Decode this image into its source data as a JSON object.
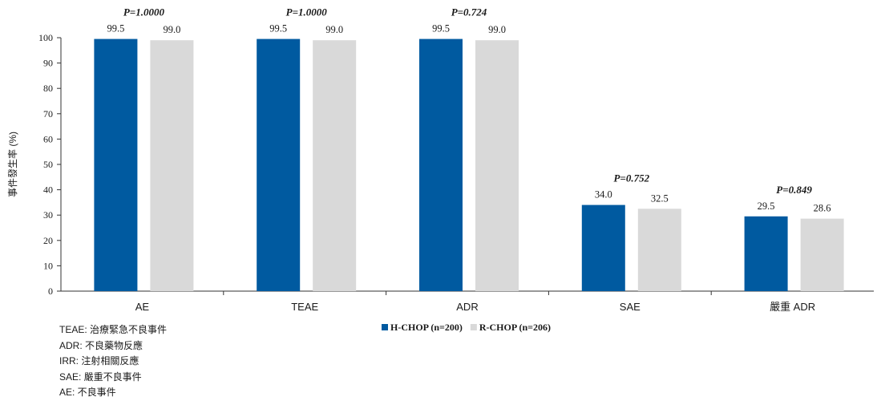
{
  "chart_data": {
    "type": "bar",
    "categories": [
      "AE",
      "TEAE",
      "ADR",
      "SAE",
      "嚴重 ADR"
    ],
    "series": [
      {
        "name": "H-CHOP (n=200)",
        "color": "#005aa0",
        "values": [
          99.5,
          99.5,
          99.5,
          34.0,
          29.5
        ],
        "labels": [
          "99.5",
          "99.5",
          "99.5",
          "34.0",
          "29.5"
        ]
      },
      {
        "name": "R-CHOP (n=206)",
        "color": "#d9d9d9",
        "values": [
          99.0,
          99.0,
          99.0,
          32.5,
          28.6
        ],
        "labels": [
          "99.0",
          "99.0",
          "99.0",
          "32.5",
          "28.6"
        ]
      }
    ],
    "p_values": [
      "P=1.0000",
      "P=1.0000",
      "P=0.724",
      "P=0.752",
      "P=0.849"
    ],
    "ylabel": "事件發生率 (%)",
    "ylim": [
      0,
      100
    ],
    "yticks": [
      "0",
      "10",
      "20",
      "30",
      "40",
      "50",
      "60",
      "70",
      "80",
      "90",
      "100"
    ],
    "grid": false,
    "legend_position": "bottom"
  },
  "footnotes": [
    "TEAE: 治療緊急不良事件",
    "ADR: 不良藥物反應",
    "IRR: 注射相關反應",
    "SAE: 嚴重不良事件",
    "AE: 不良事件"
  ]
}
